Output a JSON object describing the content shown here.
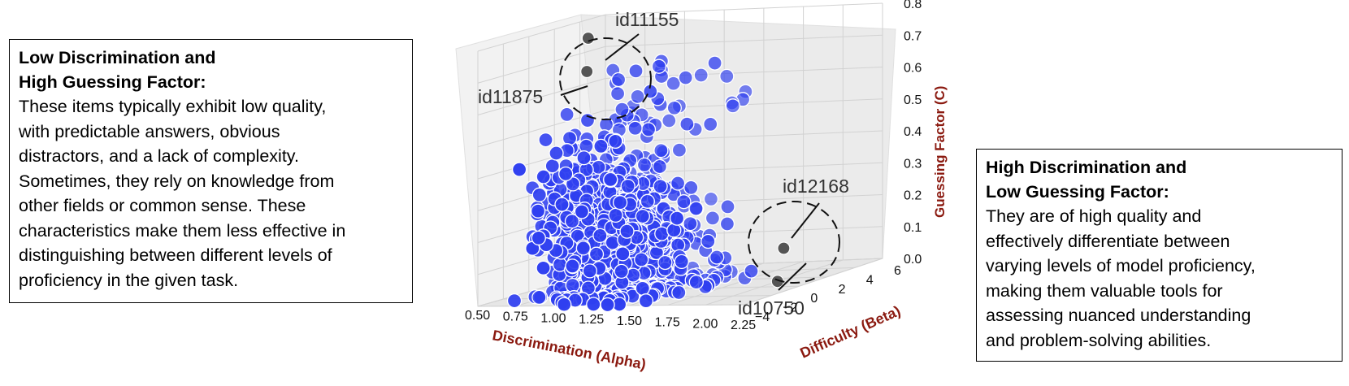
{
  "left_box": {
    "heading_line1": "Low Discrimination and",
    "heading_line2": "High Guessing Factor:",
    "body_lines": [
      "These items typically exhibit low quality,",
      "with predictable answers, obvious",
      "distractors, and a lack of complexity.",
      "Sometimes, they rely on knowledge from",
      "other fields or common sense. These",
      "characteristics make them less effective in",
      "distinguishing between different levels of",
      "proficiency in the given task."
    ]
  },
  "right_box": {
    "heading_line1": "High Discrimination and",
    "heading_line2": "Low Guessing Factor:",
    "body_lines": [
      "They are of high quality and",
      "effectively differentiate between",
      "varying levels of model proficiency,",
      "making them valuable tools for",
      "assessing nuanced understanding",
      "and problem-solving abilities."
    ]
  },
  "chart_data": {
    "type": "scatter",
    "projection": "3d",
    "xlabel": "Discrimination (Alpha)",
    "ylabel": "Difficulty (Beta)",
    "zlabel": "Guessing Factor (C)",
    "x_ticks": [
      "0.50",
      "0.75",
      "1.00",
      "1.25",
      "1.50",
      "1.75",
      "2.00",
      "2.25"
    ],
    "y_ticks": [
      "−4",
      "−2",
      "0",
      "2",
      "4",
      "6"
    ],
    "z_ticks": [
      "0.0",
      "0.1",
      "0.2",
      "0.3",
      "0.4",
      "0.5",
      "0.6",
      "0.7",
      "0.8"
    ],
    "xlim": [
      0.5,
      2.25
    ],
    "ylim": [
      -4,
      6
    ],
    "zlim": [
      0.0,
      0.8
    ],
    "grid": true,
    "colors": {
      "points": "#2f3ff0",
      "highlight": "#555555",
      "axis_label": "#8b1a10"
    },
    "highlighted": [
      {
        "id": "id11155",
        "alpha": 0.8,
        "beta": 1.0,
        "c": 0.78
      },
      {
        "id": "id11875",
        "alpha": 0.75,
        "beta": 1.5,
        "c": 0.67
      },
      {
        "id": "id12168",
        "alpha": 2.15,
        "beta": 0.0,
        "c": 0.12
      },
      {
        "id": "id10750",
        "alpha": 2.2,
        "beta": -1.0,
        "c": 0.03
      }
    ],
    "annotations": [
      "id11155",
      "id11875",
      "id12168",
      "id10750"
    ]
  }
}
